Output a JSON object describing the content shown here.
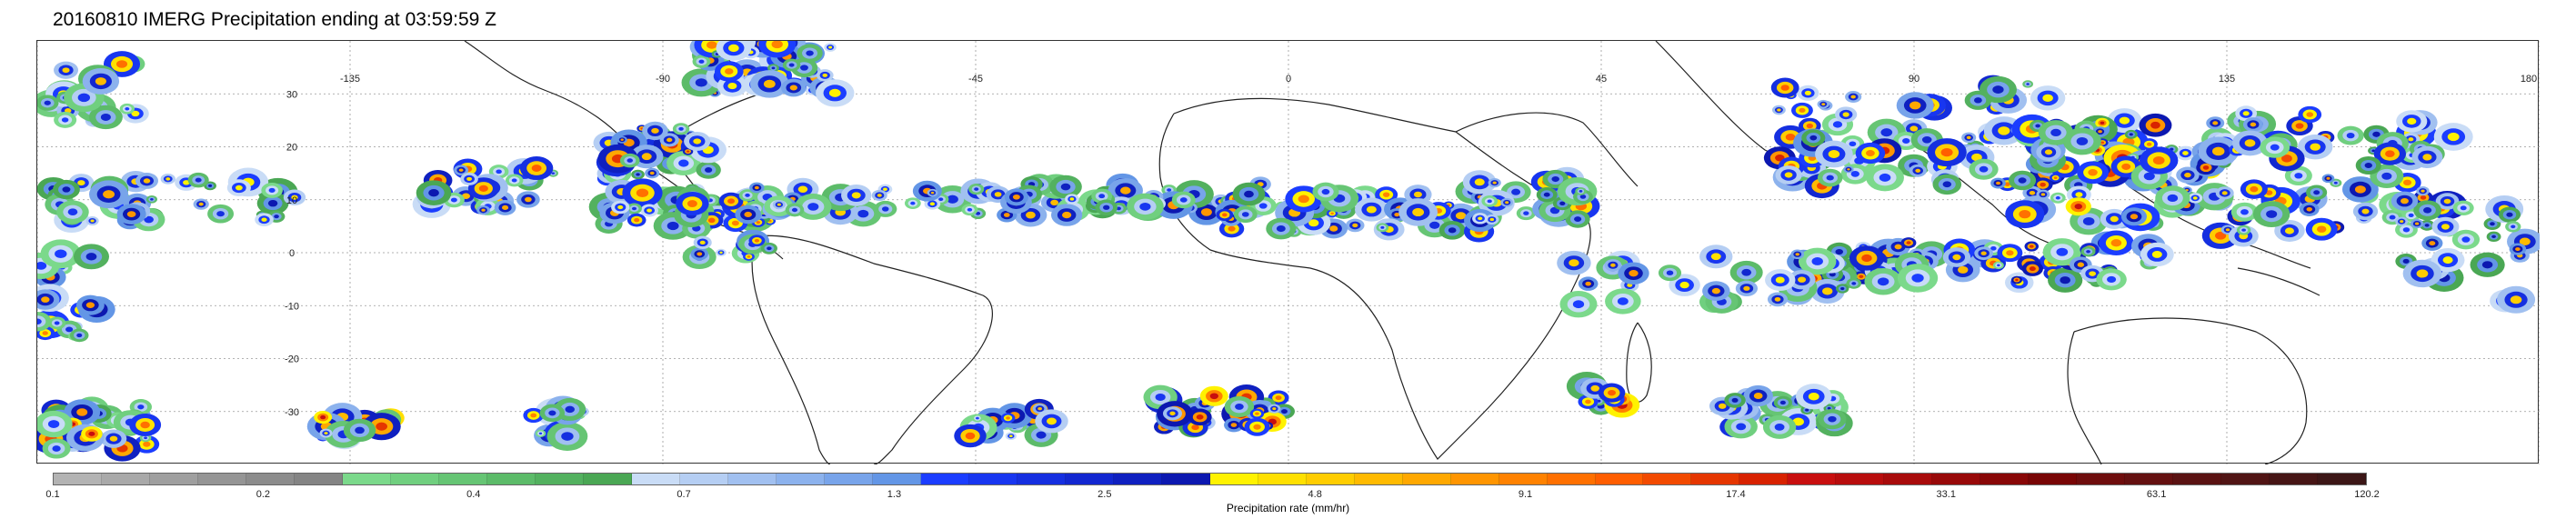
{
  "title": "20160810 IMERG Precipitation ending at 03:59:59 Z",
  "map": {
    "lon_ticks": [
      "-135",
      "-90",
      "-45",
      "0",
      "45",
      "90",
      "135",
      "180"
    ],
    "lat_ticks": [
      "30",
      "20",
      "10",
      "0",
      "-10",
      "-20",
      "-30"
    ],
    "grid": true
  },
  "colorbar": {
    "title": "Precipitation rate (mm/hr)",
    "tick_labels": [
      "0.1",
      "0.2",
      "0.4",
      "0.7",
      "1.3",
      "2.5",
      "4.8",
      "9.1",
      "17.4",
      "33.1",
      "63.1",
      "120.2"
    ],
    "colors": [
      "#b3b3b3",
      "#a9a9a9",
      "#9f9f9f",
      "#959595",
      "#8c8c8c",
      "#848484",
      "#7bd98b",
      "#70cf7f",
      "#66c574",
      "#5cbb69",
      "#53b15f",
      "#4aa754",
      "#c9dcf6",
      "#b5cef3",
      "#a1c0f0",
      "#8cb2ed",
      "#78a4ea",
      "#6396e6",
      "#1b3dff",
      "#1836f0",
      "#152fe0",
      "#1227d0",
      "#0f20c0",
      "#0c18b0",
      "#fff200",
      "#ffe000",
      "#ffcd00",
      "#ffba00",
      "#ffa800",
      "#ff9500",
      "#ff8200",
      "#ff7000",
      "#ff5e00",
      "#f24a00",
      "#e53600",
      "#d82200",
      "#c80f0f",
      "#b80d0d",
      "#a80b0b",
      "#980909",
      "#880707",
      "#780505",
      "#6e0d0d",
      "#641010",
      "#5a1212",
      "#501414",
      "#461515",
      "#3c1616"
    ]
  }
}
